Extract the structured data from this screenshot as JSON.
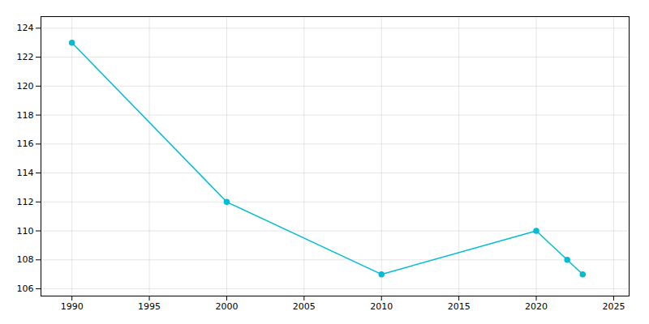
{
  "chart_data": {
    "type": "line",
    "x": [
      1990,
      2000,
      2010,
      2020,
      2022,
      2023
    ],
    "values": [
      123,
      112,
      107,
      110,
      108,
      107
    ],
    "color": "#00BCD4",
    "marker": "circle",
    "xlim": [
      1988,
      2026
    ],
    "ylim": [
      105.5,
      124.8
    ],
    "xticks": [
      1990,
      1995,
      2000,
      2005,
      2010,
      2015,
      2020,
      2025
    ],
    "yticks": [
      106,
      108,
      110,
      112,
      114,
      116,
      118,
      120,
      122,
      124
    ],
    "grid": true
  }
}
